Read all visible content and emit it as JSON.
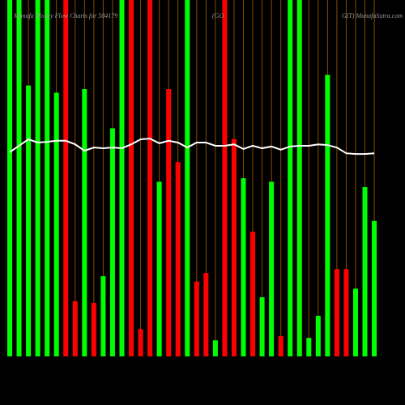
{
  "chart_data": {
    "type": "bar",
    "title": "Munafa Money Flow Charts for 504179",
    "title_mid": "(GO",
    "title_right": "GIT) MunafaSutra.com",
    "categories": [
      null,
      null,
      null,
      null,
      null,
      null,
      null,
      null,
      null,
      null,
      null,
      null,
      null,
      null,
      null,
      null,
      null,
      null,
      null,
      null,
      null,
      null,
      null,
      null,
      null,
      null,
      null,
      null,
      null,
      null,
      null,
      null,
      null,
      null,
      null,
      null,
      null,
      null,
      null,
      null
    ],
    "series": [
      {
        "color_up": "#00ff00",
        "color_down": "#ff0000",
        "directions": [
          "up",
          "up",
          "up",
          "up",
          "up",
          "up",
          "down",
          "down",
          "up",
          "down",
          "up",
          "up",
          "up",
          "down",
          "down",
          "down",
          "up",
          "down",
          "down",
          "up",
          "down",
          "down",
          "up",
          "down",
          "down",
          "up",
          "down",
          "up",
          "up",
          "down",
          "up",
          "up",
          "up",
          "up",
          "up",
          "down",
          "down",
          "up",
          "up",
          "up"
        ],
        "values": [
          100,
          100,
          76,
          100,
          100,
          74,
          100,
          15.5,
          75,
          15,
          22.5,
          64,
          100,
          100,
          7.7,
          100,
          49,
          75,
          54.5,
          100,
          21,
          23.4,
          4.5,
          100,
          61,
          50,
          35,
          16.6,
          49,
          5.7,
          100,
          100,
          5.2,
          11.4,
          79,
          24.5,
          24.5,
          19,
          47.5,
          38
        ]
      },
      {
        "color": "#ffffff",
        "values": [
          57.3,
          59.1,
          60.9,
          60,
          60.2,
          60.5,
          60.5,
          59.5,
          57.7,
          58.6,
          58.4,
          58.6,
          58.4,
          59.5,
          60.9,
          61.1,
          59.8,
          60.5,
          60,
          58.6,
          60,
          60,
          59.1,
          59.1,
          59.5,
          58.2,
          59.1,
          58.4,
          58.9,
          58,
          58.9,
          59.1,
          59.1,
          59.5,
          59.3,
          58.6,
          57,
          56.8,
          56.8,
          57
        ]
      }
    ],
    "ylim": [
      0,
      100
    ]
  }
}
